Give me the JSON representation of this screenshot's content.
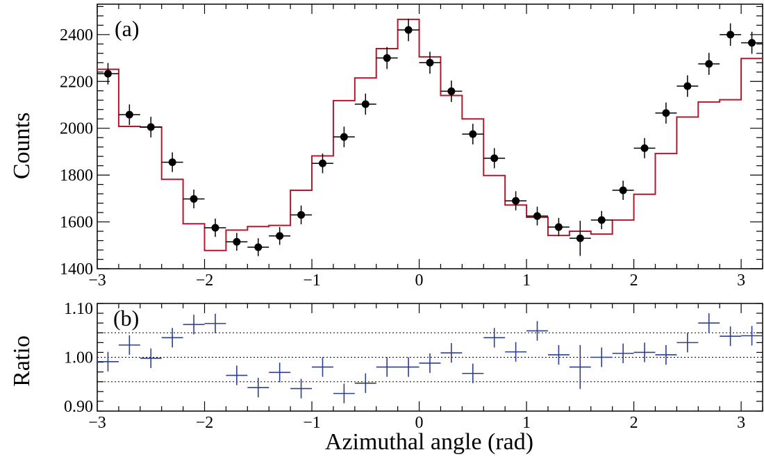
{
  "figure": {
    "xlabel": "Azimuthal angle (rad)"
  },
  "chart_data": [
    {
      "type": "scatter",
      "panel_label": "(a)",
      "ylabel": "Counts",
      "xlim": [
        -3.0,
        3.2
      ],
      "ylim": [
        1400,
        2530
      ],
      "xticks": [
        "−3",
        "−2",
        "−1",
        "0",
        "1",
        "2",
        "3"
      ],
      "xtick_values": [
        -3,
        -2,
        -1,
        0,
        1,
        2,
        3
      ],
      "yticks": [
        "1400",
        "1600",
        "1800",
        "2000",
        "2200",
        "2400"
      ],
      "ytick_values": [
        1400,
        1600,
        1800,
        2000,
        2200,
        2400
      ],
      "grid": false,
      "bin_edges": [
        -3.0,
        -2.8,
        -2.6,
        -2.4,
        -2.2,
        -2.0,
        -1.8,
        -1.6,
        -1.4,
        -1.2,
        -1.0,
        -0.8,
        -0.6,
        -0.4,
        -0.2,
        0.0,
        0.2,
        0.4,
        0.6,
        0.8,
        1.0,
        1.2,
        1.4,
        1.6,
        1.8,
        2.0,
        2.2,
        2.4,
        2.6,
        2.8,
        3.0,
        3.2
      ],
      "series": [
        {
          "kind": "points-with-errors",
          "color": "#000000",
          "x": [
            -2.9,
            -2.7,
            -2.5,
            -2.3,
            -2.1,
            -1.9,
            -1.7,
            -1.5,
            -1.3,
            -1.1,
            -0.9,
            -0.7,
            -0.5,
            -0.3,
            -0.1,
            0.1,
            0.3,
            0.5,
            0.7,
            0.9,
            1.1,
            1.3,
            1.5,
            1.7,
            1.9,
            2.1,
            2.3,
            2.5,
            2.7,
            2.9,
            3.1
          ],
          "y": [
            2233,
            2058,
            2005,
            1855,
            1698,
            1575,
            1515,
            1492,
            1540,
            1630,
            1850,
            1963,
            2103,
            2300,
            2420,
            2280,
            2158,
            1975,
            1872,
            1690,
            1625,
            1578,
            1530,
            1608,
            1735,
            1915,
            2065,
            2180,
            2275,
            2400,
            2365
          ],
          "yerr": [
            46,
            44,
            44,
            42,
            40,
            39,
            38,
            38,
            38,
            40,
            42,
            44,
            45,
            47,
            48,
            47,
            46,
            44,
            43,
            41,
            40,
            39,
            75,
            39,
            41,
            43,
            45,
            46,
            47,
            48,
            47
          ]
        },
        {
          "kind": "step-histogram",
          "color": "#b2182b",
          "values": [
            2252,
            2008,
            2005,
            1782,
            1592,
            1478,
            1565,
            1580,
            1585,
            1735,
            1882,
            2118,
            2215,
            2340,
            2465,
            2305,
            2140,
            2040,
            1798,
            1672,
            1620,
            1542,
            1560,
            1548,
            1608,
            1718,
            1892,
            2048,
            2112,
            2122,
            2298
          ]
        }
      ]
    },
    {
      "type": "scatter",
      "panel_label": "(b)",
      "ylabel": "Ratio",
      "xlim": [
        -3.0,
        3.2
      ],
      "ylim": [
        0.89,
        1.11
      ],
      "xticks": [
        "−3",
        "−2",
        "−1",
        "0",
        "1",
        "2",
        "3"
      ],
      "xtick_values": [
        -3,
        -2,
        -1,
        0,
        1,
        2,
        3
      ],
      "yticks": [
        "0.90",
        "1.00",
        "1.10"
      ],
      "ytick_values": [
        0.9,
        1.0,
        1.1
      ],
      "reference_lines": [
        0.95,
        1.0,
        1.05
      ],
      "grid": false,
      "series": [
        {
          "kind": "crosses-with-errors",
          "color": "#2c3e8c",
          "x": [
            -2.9,
            -2.7,
            -2.5,
            -2.3,
            -2.1,
            -1.9,
            -1.7,
            -1.5,
            -1.3,
            -1.1,
            -0.9,
            -0.7,
            -0.5,
            -0.3,
            -0.1,
            0.1,
            0.3,
            0.5,
            0.7,
            0.9,
            1.1,
            1.3,
            1.5,
            1.7,
            1.9,
            2.1,
            2.3,
            2.5,
            2.7,
            2.9,
            3.1
          ],
          "xerr": 0.1,
          "y": [
            0.991,
            1.025,
            0.998,
            1.04,
            1.067,
            1.069,
            0.963,
            0.938,
            0.969,
            0.936,
            0.98,
            0.926,
            0.947,
            0.98,
            0.98,
            0.988,
            1.009,
            0.967,
            1.04,
            1.011,
            1.054,
            1.005,
            0.98,
            1.0,
            1.008,
            1.01,
            1.005,
            1.03,
            1.07,
            1.043,
            1.044
          ],
          "yerr": [
            0.02,
            0.02,
            0.02,
            0.02,
            0.02,
            0.02,
            0.02,
            0.02,
            0.02,
            0.02,
            0.02,
            0.02,
            0.02,
            0.02,
            0.02,
            0.02,
            0.02,
            0.02,
            0.02,
            0.02,
            0.02,
            0.02,
            0.045,
            0.02,
            0.02,
            0.02,
            0.02,
            0.02,
            0.02,
            0.02,
            0.02
          ]
        }
      ]
    }
  ]
}
